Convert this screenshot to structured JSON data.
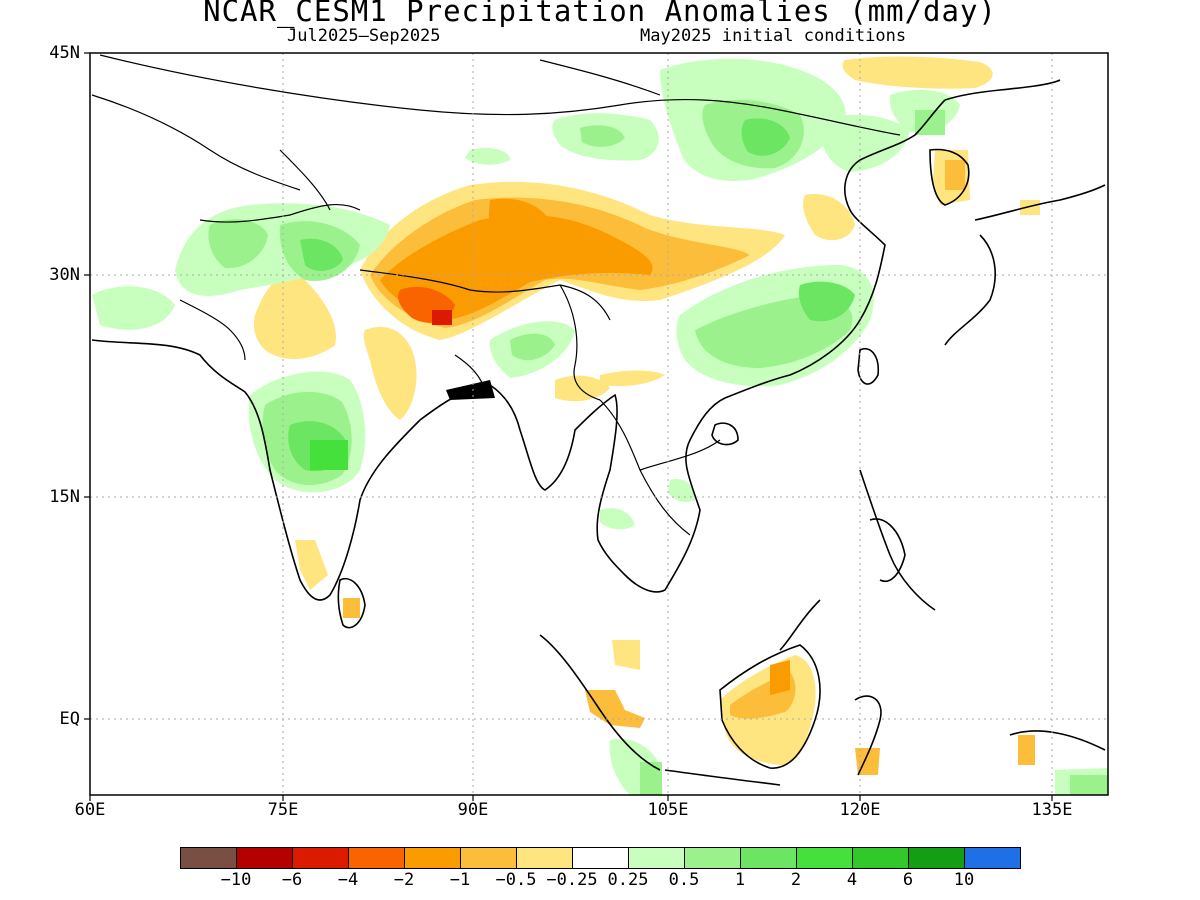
{
  "title": "NCAR_CESM1 Precipitation Anomalies (mm/day)",
  "subtitle_left": "Jul2025–Sep2025",
  "subtitle_right": "May2025 initial conditions",
  "y_ticks": [
    "45N",
    "30N",
    "15N",
    "EQ"
  ],
  "x_ticks": [
    "60E",
    "75E",
    "90E",
    "105E",
    "120E",
    "135E"
  ],
  "legend": {
    "colors": [
      "#7a4f43",
      "#b40000",
      "#dc1a00",
      "#fa6400",
      "#fa9b00",
      "#fcbd3a",
      "#ffe580",
      "#ffffff",
      "#c8ffbe",
      "#9bf28c",
      "#6be562",
      "#46e03c",
      "#31c92a",
      "#139e13",
      "#1f6fe6"
    ],
    "labels": [
      "−10",
      "−6",
      "−4",
      "−2",
      "−1",
      "−0.5",
      "−0.25",
      "0.25",
      "0.5",
      "1",
      "2",
      "4",
      "6",
      "10"
    ]
  },
  "chart_data": {
    "type": "heatmap",
    "variable": "Precipitation Anomalies (mm/day)",
    "model": "NCAR_CESM1",
    "period": "Jul2025–Sep2025",
    "initial_conditions": "May2025",
    "lon_range": [
      60,
      140
    ],
    "lat_range": [
      -5,
      45
    ],
    "lon_ticks": [
      60,
      75,
      90,
      105,
      120,
      135
    ],
    "lat_ticks": [
      45,
      30,
      15,
      0
    ],
    "grid": "dotted",
    "legend_placement": "bottom",
    "color_levels": [
      -10,
      -6,
      -4,
      -2,
      -1,
      -0.5,
      -0.25,
      0.25,
      0.5,
      1,
      2,
      4,
      6,
      10
    ],
    "anomaly_regions": [
      {
        "sign": "negative",
        "max_abs": 4,
        "lon": [
          82,
          100
        ],
        "lat": [
          27,
          35
        ]
      },
      {
        "sign": "negative",
        "max_abs": 1,
        "lon": [
          94,
          113
        ],
        "lat": [
          29,
          35
        ]
      },
      {
        "sign": "negative",
        "max_abs": 0.5,
        "lon": [
          73,
          92
        ],
        "lat": [
          19,
          28
        ]
      },
      {
        "sign": "negative",
        "max_abs": 1,
        "lon": [
          110,
          117
        ],
        "lat": [
          -4,
          4
        ]
      },
      {
        "sign": "positive",
        "max_abs": 2,
        "lon": [
          73,
          83
        ],
        "lat": [
          15,
          23
        ]
      },
      {
        "sign": "positive",
        "max_abs": 1,
        "lon": [
          69,
          85
        ],
        "lat": [
          27,
          35
        ]
      },
      {
        "sign": "positive",
        "max_abs": 1,
        "lon": [
          109,
          119
        ],
        "lat": [
          23,
          30
        ]
      },
      {
        "sign": "positive",
        "max_abs": 1,
        "lon": [
          102,
          128
        ],
        "lat": [
          36,
          44
        ]
      },
      {
        "sign": "positive",
        "max_abs": 0.5,
        "lon": [
          133,
          140
        ],
        "lat": [
          -5,
          -2
        ]
      }
    ]
  }
}
